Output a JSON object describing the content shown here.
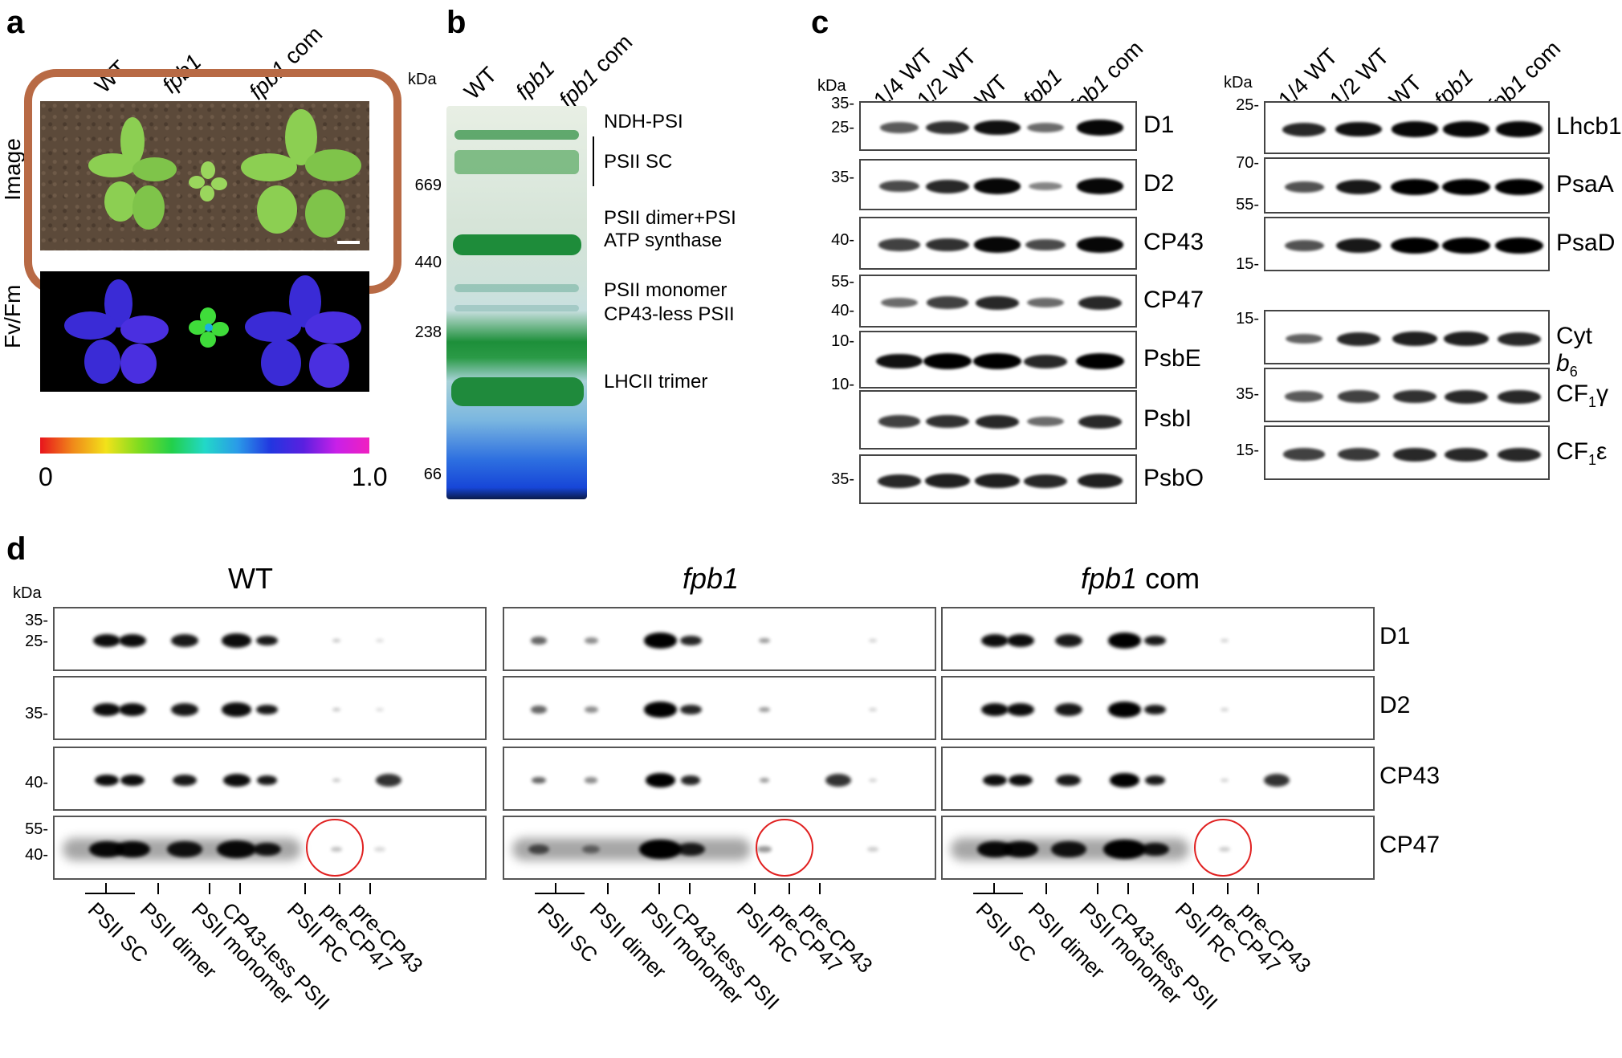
{
  "panels": {
    "a": {
      "letter": "a",
      "columns": [
        "WT",
        "fpb1",
        "fpb1 com"
      ],
      "row_labels": [
        "Image",
        "Fv/Fm"
      ],
      "scale_min": "0",
      "scale_max": "1.0"
    },
    "b": {
      "letter": "b",
      "columns": [
        "WT",
        "fpb1",
        "fpb1 com"
      ],
      "kda_unit": "kDa",
      "markers": [
        "669",
        "440",
        "238",
        "66"
      ],
      "bands": [
        "NDH-PSI",
        "PSII SC",
        "PSII dimer+PSI",
        "ATP synthase",
        "PSII monomer",
        "CP43-less PSII",
        "LHCII trimer"
      ]
    },
    "c": {
      "letter": "c",
      "columns": [
        "1/4 WT",
        "1/2 WT",
        "WT",
        "fpb1",
        "fpb1 com"
      ],
      "kda_unit": "kDa",
      "left_blots": [
        {
          "name": "D1",
          "markers": [
            "35",
            "25"
          ]
        },
        {
          "name": "D2",
          "markers": [
            "35"
          ]
        },
        {
          "name": "CP43",
          "markers": [
            "40"
          ]
        },
        {
          "name": "CP47",
          "markers": [
            "55",
            "40"
          ]
        },
        {
          "name": "PsbE",
          "markers": [
            "10"
          ]
        },
        {
          "name": "PsbI",
          "markers": [
            "10"
          ]
        },
        {
          "name": "PsbO",
          "markers": [
            "35"
          ]
        }
      ],
      "right_blots": [
        {
          "name": "Lhcb1",
          "markers": [
            "25"
          ]
        },
        {
          "name": "PsaA",
          "markers": [
            "70",
            "55"
          ]
        },
        {
          "name": "PsaD",
          "markers": [
            "15"
          ]
        },
        {
          "name": "Cyt b6",
          "name_main": "Cyt ",
          "name_it": "b",
          "name_sub": "6",
          "markers": [
            "15"
          ]
        },
        {
          "name": "CF1γ",
          "name_main": "CF",
          "name_sub": "1",
          "name_end": "γ",
          "markers": [
            "35"
          ]
        },
        {
          "name": "CF1ε",
          "name_main": "CF",
          "name_sub": "1",
          "name_end": "ε",
          "markers": [
            "15"
          ]
        }
      ]
    },
    "d": {
      "letter": "d",
      "kda_unit": "kDa",
      "groups": [
        {
          "title": "WT",
          "title_italic": "",
          "title_rest": ""
        },
        {
          "title": "",
          "title_italic": "fpb1",
          "title_rest": ""
        },
        {
          "title": "",
          "title_italic": "fpb1",
          "title_rest": " com"
        }
      ],
      "rows": [
        {
          "name": "D1",
          "markers": [
            "35-",
            "25-"
          ]
        },
        {
          "name": "D2",
          "markers": [
            "35-"
          ]
        },
        {
          "name": "CP43",
          "markers": [
            "40-"
          ]
        },
        {
          "name": "CP47",
          "markers": [
            "55-",
            "40-"
          ]
        }
      ],
      "complexes": [
        "PSII SC",
        "PSII dimer",
        "PSII monomer",
        "CP43-less PSII",
        "PSII RC",
        "pre-CP47",
        "pre-CP43"
      ]
    }
  },
  "colors": {
    "highlight_circle": "#e02020",
    "gel_green": "#1d8f3a",
    "gel_blue": "#1746d8",
    "fvfm_blue": "#3a2bd6",
    "fvfm_green": "#3fdc3a"
  }
}
